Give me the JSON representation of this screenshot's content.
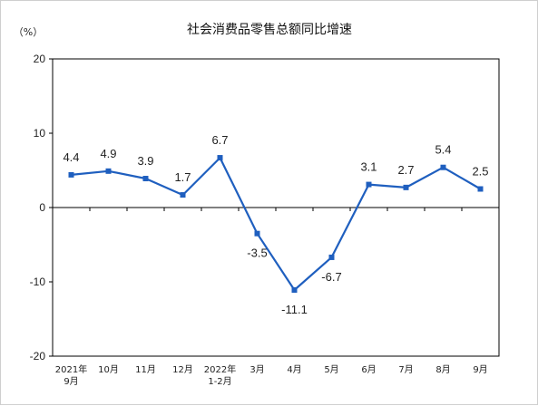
{
  "chart_data": {
    "type": "line",
    "title": "社会消费品零售总额同比增速",
    "yunit": "（%）",
    "categories": [
      [
        "2021年",
        "9月"
      ],
      [
        "10月"
      ],
      [
        "11月"
      ],
      [
        "12月"
      ],
      [
        "2022年",
        "1-2月"
      ],
      [
        "3月"
      ],
      [
        "4月"
      ],
      [
        "5月"
      ],
      [
        "6月"
      ],
      [
        "7月"
      ],
      [
        "8月"
      ],
      [
        "9月"
      ]
    ],
    "values": [
      4.4,
      4.9,
      3.9,
      1.7,
      6.7,
      -3.5,
      -11.1,
      -6.7,
      3.1,
      2.7,
      5.4,
      2.5
    ],
    "value_labels": [
      "4.4",
      "4.9",
      "3.9",
      "1.7",
      "6.7",
      "-3.5",
      "-11.1",
      "-6.7",
      "3.1",
      "2.7",
      "5.4",
      "2.5"
    ],
    "yticks": [
      20,
      10,
      0,
      -10,
      -20
    ],
    "ytick_labels": [
      "20",
      "10",
      "0",
      "-10",
      "-20"
    ],
    "ylim": [
      -20,
      20
    ],
    "grid": false,
    "line_color": "#1f5fbf",
    "marker": "square"
  }
}
